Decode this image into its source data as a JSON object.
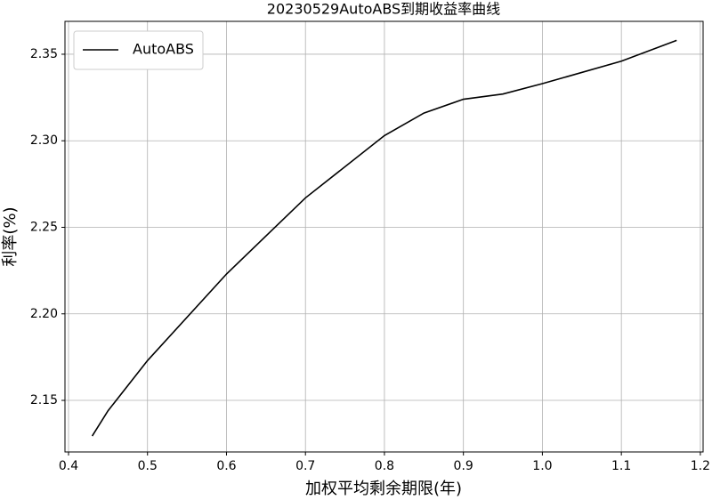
{
  "chart_data": {
    "type": "line",
    "title": "20230529AutoABS到期收益率曲线",
    "x_label": "加权平均剩余期限(年)",
    "y_label": "利率(%)",
    "x": [
      0.43,
      0.45,
      0.5,
      0.6,
      0.7,
      0.8,
      0.85,
      0.9,
      0.95,
      1.0,
      1.1,
      1.17
    ],
    "series": [
      {
        "name": "AutoABS",
        "color": "#000000",
        "values": [
          2.1294,
          2.144,
          2.173,
          2.223,
          2.267,
          2.303,
          2.316,
          2.324,
          2.327,
          2.333,
          2.346,
          2.358
        ]
      }
    ],
    "xlim": [
      0.3955,
      1.2035
    ],
    "ylim": [
      2.1202,
      2.369
    ],
    "xticks": [
      0.4,
      0.5,
      0.6,
      0.7,
      0.8,
      0.9,
      {
        "value": 1,
        "label": "1.0"
      },
      1.1,
      1.2
    ],
    "yticks": [
      2.15,
      {
        "value": 2.2,
        "label": "2.20"
      },
      2.25,
      {
        "value": 2.3,
        "label": "2.30"
      },
      2.35
    ],
    "grid": true,
    "legend": "upper-left"
  }
}
